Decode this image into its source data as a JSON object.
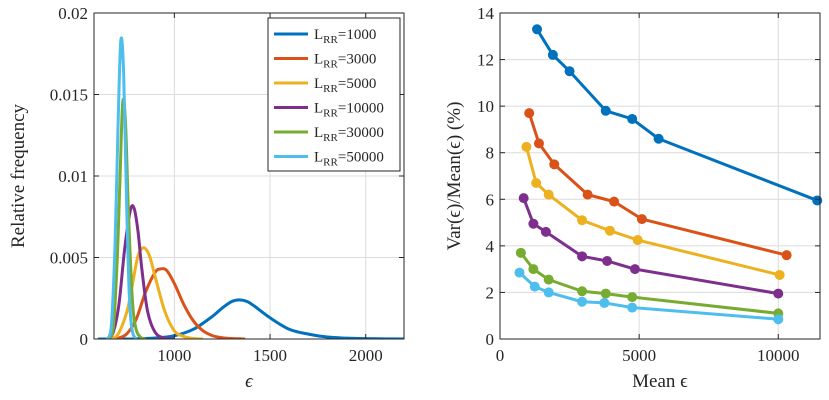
{
  "chart_data": [
    {
      "type": "line",
      "xlabel": "ϵ",
      "ylabel": "Relative frequency",
      "xlim": [
        580,
        2200
      ],
      "ylim": [
        0,
        0.02
      ],
      "xticks": [
        1000,
        1500,
        2000
      ],
      "xtick_labels": [
        "1000",
        "1500",
        "2000"
      ],
      "yticks": [
        0,
        0.005,
        0.01,
        0.015,
        0.02
      ],
      "ytick_labels": [
        "0",
        "0.005",
        "0.01",
        "0.015",
        "0.02"
      ],
      "grid": true,
      "legend_position": "top-right",
      "series": [
        {
          "name": "L_RR=1000",
          "label_main": "L",
          "label_sub": "RR",
          "label_val": "=1000",
          "color": "#0072BD",
          "x": [
            600,
            700,
            800,
            900,
            1000,
            1100,
            1200,
            1250,
            1300,
            1340,
            1380,
            1420,
            1500,
            1600,
            1700,
            1800,
            1900,
            2000,
            2100,
            2200
          ],
          "y": [
            0,
            0,
            1e-05,
            6e-05,
            0.0002,
            0.0006,
            0.0014,
            0.0019,
            0.0023,
            0.0024,
            0.0023,
            0.002,
            0.0013,
            0.0006,
            0.0003,
            0.00012,
            5e-05,
            2e-05,
            1e-05,
            0
          ]
        },
        {
          "name": "L_RR=3000",
          "label_main": "L",
          "label_sub": "RR",
          "label_val": "=3000",
          "color": "#D95319",
          "x": [
            650,
            700,
            750,
            800,
            850,
            900,
            930,
            960,
            1000,
            1050,
            1100,
            1150,
            1200,
            1250,
            1300,
            1350,
            1370
          ],
          "y": [
            0,
            3e-05,
            0.0003,
            0.0012,
            0.0029,
            0.0041,
            0.0043,
            0.0042,
            0.0034,
            0.0021,
            0.0011,
            0.0005,
            0.0002,
            8e-05,
            3e-05,
            1e-05,
            0
          ]
        },
        {
          "name": "L_RR=5000",
          "label_main": "L",
          "label_sub": "RR",
          "label_val": "=5000",
          "color": "#EDB120",
          "x": [
            650,
            700,
            750,
            780,
            810,
            840,
            870,
            900,
            950,
            1000,
            1050,
            1100,
            1150
          ],
          "y": [
            0,
            0.0002,
            0.0016,
            0.0033,
            0.0051,
            0.0056,
            0.0051,
            0.0038,
            0.0017,
            0.0005,
            0.00015,
            3e-05,
            0
          ]
        },
        {
          "name": "L_RR=10000",
          "label_main": "L",
          "label_sub": "RR",
          "label_val": "=10000",
          "color": "#7E2F8E",
          "x": [
            650,
            680,
            710,
            740,
            770,
            790,
            810,
            830,
            860,
            900,
            950,
            1000
          ],
          "y": [
            0,
            0.0004,
            0.0021,
            0.0055,
            0.0079,
            0.008,
            0.0066,
            0.0043,
            0.0017,
            0.0004,
            5e-05,
            0
          ]
        },
        {
          "name": "L_RR=30000",
          "label_main": "L",
          "label_sub": "RR",
          "label_val": "=30000",
          "color": "#77AC30",
          "x": [
            650,
            680,
            700,
            715,
            730,
            745,
            760,
            780,
            800,
            830,
            850
          ],
          "y": [
            0,
            0.0006,
            0.0045,
            0.0095,
            0.0145,
            0.0132,
            0.0078,
            0.0025,
            0.0006,
            5e-05,
            0
          ]
        },
        {
          "name": "L_RR=50000",
          "label_main": "L",
          "label_sub": "RR",
          "label_val": "=50000",
          "color": "#4DBEEE",
          "x": [
            650,
            670,
            690,
            705,
            720,
            735,
            750,
            765,
            780,
            800
          ],
          "y": [
            0,
            0.0007,
            0.0058,
            0.0128,
            0.0183,
            0.0163,
            0.0085,
            0.0025,
            0.0005,
            0
          ]
        }
      ]
    },
    {
      "type": "line",
      "xlabel": "Mean ϵ",
      "ylabel": "Var(ϵ)/Mean(ϵ) (%)",
      "xlim": [
        0,
        11500
      ],
      "ylim": [
        0,
        14
      ],
      "xticks": [
        0,
        5000,
        10000
      ],
      "xtick_labels": [
        "0",
        "5000",
        "10000"
      ],
      "yticks": [
        0,
        2,
        4,
        6,
        8,
        10,
        12,
        14
      ],
      "ytick_labels": [
        "0",
        "2",
        "4",
        "6",
        "8",
        "10",
        "12",
        "14"
      ],
      "grid": true,
      "markers": true,
      "series": [
        {
          "name": "L_RR=1000",
          "color": "#0072BD",
          "x": [
            1330,
            1900,
            2500,
            3800,
            4750,
            5700,
            11400
          ],
          "y": [
            13.3,
            12.2,
            11.5,
            9.8,
            9.45,
            8.6,
            5.95
          ]
        },
        {
          "name": "L_RR=3000",
          "color": "#D95319",
          "x": [
            1050,
            1400,
            1950,
            3150,
            4100,
            5100,
            10300
          ],
          "y": [
            9.7,
            8.4,
            7.5,
            6.2,
            5.9,
            5.15,
            3.6
          ]
        },
        {
          "name": "L_RR=5000",
          "color": "#EDB120",
          "x": [
            950,
            1300,
            1750,
            2950,
            3950,
            4950,
            10050
          ],
          "y": [
            8.25,
            6.7,
            6.2,
            5.1,
            4.65,
            4.25,
            2.75
          ]
        },
        {
          "name": "L_RR=10000",
          "color": "#7E2F8E",
          "x": [
            850,
            1200,
            1650,
            2950,
            3850,
            4850,
            10000
          ],
          "y": [
            6.05,
            4.95,
            4.6,
            3.55,
            3.35,
            3.0,
            1.95
          ]
        },
        {
          "name": "L_RR=30000",
          "color": "#77AC30",
          "x": [
            750,
            1200,
            1750,
            2950,
            3800,
            4750,
            10000
          ],
          "y": [
            3.7,
            3.0,
            2.55,
            2.05,
            1.95,
            1.8,
            1.1
          ]
        },
        {
          "name": "L_RR=50000",
          "color": "#4DBEEE",
          "x": [
            700,
            1250,
            1750,
            2950,
            3750,
            4750,
            10000
          ],
          "y": [
            2.85,
            2.25,
            2.0,
            1.6,
            1.55,
            1.35,
            0.85
          ]
        }
      ]
    }
  ]
}
